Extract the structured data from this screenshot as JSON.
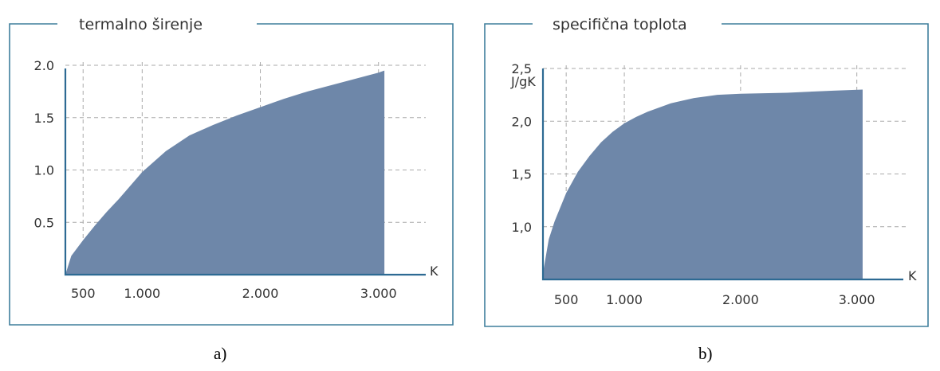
{
  "chart_data": [
    {
      "type": "area",
      "title": "termalno širenje",
      "xlabel": "K",
      "ylabel": "",
      "xlim": [
        350,
        3400
      ],
      "ylim": [
        0,
        2.0
      ],
      "xticks": [
        500,
        1000,
        2000,
        3000
      ],
      "xtick_labels": [
        "500",
        "1.000",
        "2.000",
        "3.000"
      ],
      "yticks": [
        0.5,
        1.0,
        1.5,
        2.0
      ],
      "ytick_labels": [
        "0.5",
        "1.0",
        "1.5",
        "2.0"
      ],
      "grid": true,
      "x": [
        300,
        400,
        500,
        600,
        700,
        800,
        900,
        1000,
        1200,
        1400,
        1600,
        1800,
        2000,
        2200,
        2400,
        2600,
        2800,
        3000,
        3050
      ],
      "values": [
        0.0,
        0.18,
        0.33,
        0.47,
        0.6,
        0.72,
        0.85,
        0.98,
        1.18,
        1.33,
        1.43,
        1.52,
        1.6,
        1.68,
        1.75,
        1.81,
        1.87,
        1.93,
        1.95
      ],
      "caption": "a)"
    },
    {
      "type": "area",
      "title": "specifična toplota",
      "xlabel": "K",
      "ylabel": "J/gK",
      "xlim": [
        300,
        3400
      ],
      "ylim": [
        0.5,
        2.5
      ],
      "xticks": [
        500,
        1000,
        2000,
        3000
      ],
      "xtick_labels": [
        "500",
        "1.000",
        "2.000",
        "3.000"
      ],
      "yticks": [
        1.0,
        1.5,
        2.0,
        2.5
      ],
      "ytick_labels": [
        "1,0",
        "1,5",
        "2,0",
        "2,5"
      ],
      "grid": true,
      "x": [
        300,
        350,
        400,
        500,
        600,
        700,
        800,
        900,
        1000,
        1100,
        1200,
        1400,
        1600,
        1800,
        2000,
        2400,
        2800,
        3050
      ],
      "values": [
        0.56,
        0.88,
        1.05,
        1.32,
        1.52,
        1.67,
        1.8,
        1.9,
        1.98,
        2.04,
        2.09,
        2.17,
        2.22,
        2.25,
        2.26,
        2.27,
        2.29,
        2.3
      ],
      "caption": "b)"
    }
  ]
}
